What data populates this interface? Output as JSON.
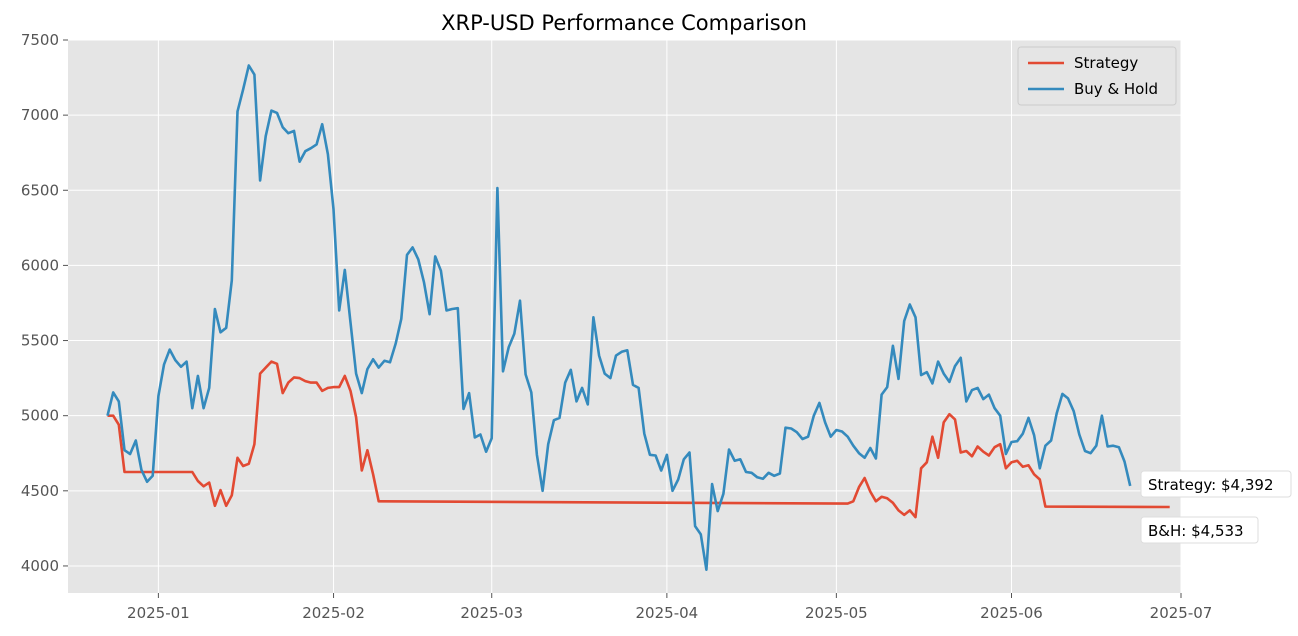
{
  "chart_data": {
    "type": "line",
    "title": "XRP-USD Performance Comparison",
    "xlabel": "",
    "ylabel": "",
    "x_range": [
      "2024-12-16",
      "2025-07-01"
    ],
    "ylim": [
      3820,
      7500
    ],
    "x_ticks": [
      {
        "date": "2025-01-01",
        "label": "2025-01"
      },
      {
        "date": "2025-02-01",
        "label": "2025-02"
      },
      {
        "date": "2025-03-01",
        "label": "2025-03"
      },
      {
        "date": "2025-04-01",
        "label": "2025-04"
      },
      {
        "date": "2025-05-01",
        "label": "2025-05"
      },
      {
        "date": "2025-06-01",
        "label": "2025-06"
      },
      {
        "date": "2025-07-01",
        "label": "2025-07"
      }
    ],
    "y_ticks": [
      4000,
      4500,
      5000,
      5500,
      6000,
      6500,
      7000,
      7500
    ],
    "grid": true,
    "legend_position": "top-right",
    "series": [
      {
        "name": "Strategy",
        "color": "#E24A33",
        "points": [
          [
            "2024-12-23",
            5000
          ],
          [
            "2024-12-24",
            5000
          ],
          [
            "2024-12-25",
            4940
          ],
          [
            "2024-12-26",
            4625
          ],
          [
            "2024-12-27",
            4625
          ],
          [
            "2025-01-07",
            4625
          ],
          [
            "2025-01-08",
            4565
          ],
          [
            "2025-01-09",
            4530
          ],
          [
            "2025-01-10",
            4555
          ],
          [
            "2025-01-11",
            4400
          ],
          [
            "2025-01-12",
            4505
          ],
          [
            "2025-01-13",
            4400
          ],
          [
            "2025-01-14",
            4470
          ],
          [
            "2025-01-15",
            4720
          ],
          [
            "2025-01-16",
            4665
          ],
          [
            "2025-01-17",
            4680
          ],
          [
            "2025-01-18",
            4810
          ],
          [
            "2025-01-19",
            5280
          ],
          [
            "2025-01-20",
            5320
          ],
          [
            "2025-01-21",
            5360
          ],
          [
            "2025-01-22",
            5345
          ],
          [
            "2025-01-23",
            5150
          ],
          [
            "2025-01-24",
            5220
          ],
          [
            "2025-01-25",
            5255
          ],
          [
            "2025-01-26",
            5250
          ],
          [
            "2025-01-27",
            5230
          ],
          [
            "2025-01-28",
            5220
          ],
          [
            "2025-01-29",
            5220
          ],
          [
            "2025-01-30",
            5165
          ],
          [
            "2025-01-31",
            5185
          ],
          [
            "2025-02-01",
            5190
          ],
          [
            "2025-02-02",
            5190
          ],
          [
            "2025-02-03",
            5265
          ],
          [
            "2025-02-04",
            5165
          ],
          [
            "2025-02-05",
            4990
          ],
          [
            "2025-02-06",
            4635
          ],
          [
            "2025-02-07",
            4770
          ],
          [
            "2025-02-08",
            4610
          ],
          [
            "2025-02-09",
            4430
          ],
          [
            "2025-05-03",
            4415
          ],
          [
            "2025-05-04",
            4430
          ],
          [
            "2025-05-05",
            4525
          ],
          [
            "2025-05-06",
            4585
          ],
          [
            "2025-05-07",
            4495
          ],
          [
            "2025-05-08",
            4430
          ],
          [
            "2025-05-09",
            4460
          ],
          [
            "2025-05-10",
            4450
          ],
          [
            "2025-05-11",
            4420
          ],
          [
            "2025-05-12",
            4370
          ],
          [
            "2025-05-13",
            4340
          ],
          [
            "2025-05-14",
            4370
          ],
          [
            "2025-05-15",
            4325
          ],
          [
            "2025-05-16",
            4650
          ],
          [
            "2025-05-17",
            4690
          ],
          [
            "2025-05-18",
            4860
          ],
          [
            "2025-05-19",
            4720
          ],
          [
            "2025-05-20",
            4955
          ],
          [
            "2025-05-21",
            5010
          ],
          [
            "2025-05-22",
            4975
          ],
          [
            "2025-05-23",
            4755
          ],
          [
            "2025-05-24",
            4765
          ],
          [
            "2025-05-25",
            4730
          ],
          [
            "2025-05-26",
            4795
          ],
          [
            "2025-05-27",
            4760
          ],
          [
            "2025-05-28",
            4735
          ],
          [
            "2025-05-29",
            4790
          ],
          [
            "2025-05-30",
            4810
          ],
          [
            "2025-05-31",
            4650
          ],
          [
            "2025-06-01",
            4690
          ],
          [
            "2025-06-02",
            4700
          ],
          [
            "2025-06-03",
            4660
          ],
          [
            "2025-06-04",
            4670
          ],
          [
            "2025-06-05",
            4610
          ],
          [
            "2025-06-06",
            4575
          ],
          [
            "2025-06-07",
            4395
          ],
          [
            "2025-06-29",
            4392
          ]
        ]
      },
      {
        "name": "Buy & Hold",
        "color": "#348ABD",
        "points": [
          [
            "2024-12-23",
            5000
          ],
          [
            "2024-12-24",
            5155
          ],
          [
            "2024-12-25",
            5095
          ],
          [
            "2024-12-26",
            4770
          ],
          [
            "2024-12-27",
            4745
          ],
          [
            "2024-12-28",
            4835
          ],
          [
            "2024-12-29",
            4640
          ],
          [
            "2024-12-30",
            4560
          ],
          [
            "2024-12-31",
            4600
          ],
          [
            "2025-01-01",
            5130
          ],
          [
            "2025-01-02",
            5340
          ],
          [
            "2025-01-03",
            5440
          ],
          [
            "2025-01-04",
            5370
          ],
          [
            "2025-01-05",
            5325
          ],
          [
            "2025-01-06",
            5360
          ],
          [
            "2025-01-07",
            5050
          ],
          [
            "2025-01-08",
            5265
          ],
          [
            "2025-01-09",
            5050
          ],
          [
            "2025-01-10",
            5185
          ],
          [
            "2025-01-11",
            5710
          ],
          [
            "2025-01-12",
            5555
          ],
          [
            "2025-01-13",
            5585
          ],
          [
            "2025-01-14",
            5900
          ],
          [
            "2025-01-15",
            7025
          ],
          [
            "2025-01-16",
            7170
          ],
          [
            "2025-01-17",
            7330
          ],
          [
            "2025-01-18",
            7270
          ],
          [
            "2025-01-19",
            6565
          ],
          [
            "2025-01-20",
            6860
          ],
          [
            "2025-01-21",
            7030
          ],
          [
            "2025-01-22",
            7015
          ],
          [
            "2025-01-23",
            6920
          ],
          [
            "2025-01-24",
            6880
          ],
          [
            "2025-01-25",
            6895
          ],
          [
            "2025-01-26",
            6690
          ],
          [
            "2025-01-27",
            6760
          ],
          [
            "2025-01-28",
            6780
          ],
          [
            "2025-01-29",
            6805
          ],
          [
            "2025-01-30",
            6940
          ],
          [
            "2025-01-31",
            6740
          ],
          [
            "2025-02-01",
            6375
          ],
          [
            "2025-02-02",
            5700
          ],
          [
            "2025-02-03",
            5970
          ],
          [
            "2025-02-04",
            5620
          ],
          [
            "2025-02-05",
            5280
          ],
          [
            "2025-02-06",
            5150
          ],
          [
            "2025-02-07",
            5310
          ],
          [
            "2025-02-08",
            5375
          ],
          [
            "2025-02-09",
            5320
          ],
          [
            "2025-02-10",
            5365
          ],
          [
            "2025-02-11",
            5355
          ],
          [
            "2025-02-12",
            5480
          ],
          [
            "2025-02-13",
            5645
          ],
          [
            "2025-02-14",
            6070
          ],
          [
            "2025-02-15",
            6120
          ],
          [
            "2025-02-16",
            6040
          ],
          [
            "2025-02-17",
            5890
          ],
          [
            "2025-02-18",
            5675
          ],
          [
            "2025-02-19",
            6060
          ],
          [
            "2025-02-20",
            5965
          ],
          [
            "2025-02-21",
            5700
          ],
          [
            "2025-02-22",
            5710
          ],
          [
            "2025-02-23",
            5715
          ],
          [
            "2025-02-24",
            5045
          ],
          [
            "2025-02-25",
            5150
          ],
          [
            "2025-02-26",
            4855
          ],
          [
            "2025-02-27",
            4875
          ],
          [
            "2025-02-28",
            4760
          ],
          [
            "2025-03-01",
            4850
          ],
          [
            "2025-03-02",
            6515
          ],
          [
            "2025-03-03",
            5295
          ],
          [
            "2025-03-04",
            5455
          ],
          [
            "2025-03-05",
            5545
          ],
          [
            "2025-03-06",
            5765
          ],
          [
            "2025-03-07",
            5275
          ],
          [
            "2025-03-08",
            5155
          ],
          [
            "2025-03-09",
            4740
          ],
          [
            "2025-03-10",
            4500
          ],
          [
            "2025-03-11",
            4810
          ],
          [
            "2025-03-12",
            4970
          ],
          [
            "2025-03-13",
            4985
          ],
          [
            "2025-03-14",
            5220
          ],
          [
            "2025-03-15",
            5305
          ],
          [
            "2025-03-16",
            5095
          ],
          [
            "2025-03-17",
            5185
          ],
          [
            "2025-03-18",
            5075
          ],
          [
            "2025-03-19",
            5655
          ],
          [
            "2025-03-20",
            5400
          ],
          [
            "2025-03-21",
            5280
          ],
          [
            "2025-03-22",
            5250
          ],
          [
            "2025-03-23",
            5400
          ],
          [
            "2025-03-24",
            5425
          ],
          [
            "2025-03-25",
            5435
          ],
          [
            "2025-03-26",
            5205
          ],
          [
            "2025-03-27",
            5185
          ],
          [
            "2025-03-28",
            4880
          ],
          [
            "2025-03-29",
            4740
          ],
          [
            "2025-03-30",
            4735
          ],
          [
            "2025-03-31",
            4635
          ],
          [
            "2025-04-01",
            4740
          ],
          [
            "2025-04-02",
            4500
          ],
          [
            "2025-04-03",
            4575
          ],
          [
            "2025-04-04",
            4710
          ],
          [
            "2025-04-05",
            4755
          ],
          [
            "2025-04-06",
            4265
          ],
          [
            "2025-04-07",
            4210
          ],
          [
            "2025-04-08",
            3975
          ],
          [
            "2025-04-09",
            4545
          ],
          [
            "2025-04-10",
            4365
          ],
          [
            "2025-04-11",
            4480
          ],
          [
            "2025-04-12",
            4775
          ],
          [
            "2025-04-13",
            4700
          ],
          [
            "2025-04-14",
            4710
          ],
          [
            "2025-04-15",
            4625
          ],
          [
            "2025-04-16",
            4620
          ],
          [
            "2025-04-17",
            4590
          ],
          [
            "2025-04-18",
            4580
          ],
          [
            "2025-04-19",
            4620
          ],
          [
            "2025-04-20",
            4600
          ],
          [
            "2025-04-21",
            4615
          ],
          [
            "2025-04-22",
            4920
          ],
          [
            "2025-04-23",
            4915
          ],
          [
            "2025-04-24",
            4890
          ],
          [
            "2025-04-25",
            4845
          ],
          [
            "2025-04-26",
            4860
          ],
          [
            "2025-04-27",
            5000
          ],
          [
            "2025-04-28",
            5085
          ],
          [
            "2025-04-29",
            4955
          ],
          [
            "2025-04-30",
            4860
          ],
          [
            "2025-05-01",
            4905
          ],
          [
            "2025-05-02",
            4895
          ],
          [
            "2025-05-03",
            4860
          ],
          [
            "2025-05-04",
            4800
          ],
          [
            "2025-05-05",
            4750
          ],
          [
            "2025-05-06",
            4720
          ],
          [
            "2025-05-07",
            4785
          ],
          [
            "2025-05-08",
            4715
          ],
          [
            "2025-05-09",
            5140
          ],
          [
            "2025-05-10",
            5190
          ],
          [
            "2025-05-11",
            5465
          ],
          [
            "2025-05-12",
            5245
          ],
          [
            "2025-05-13",
            5630
          ],
          [
            "2025-05-14",
            5740
          ],
          [
            "2025-05-15",
            5655
          ],
          [
            "2025-05-16",
            5270
          ],
          [
            "2025-05-17",
            5290
          ],
          [
            "2025-05-18",
            5215
          ],
          [
            "2025-05-19",
            5360
          ],
          [
            "2025-05-20",
            5280
          ],
          [
            "2025-05-21",
            5225
          ],
          [
            "2025-05-22",
            5330
          ],
          [
            "2025-05-23",
            5385
          ],
          [
            "2025-05-24",
            5095
          ],
          [
            "2025-05-25",
            5170
          ],
          [
            "2025-05-26",
            5185
          ],
          [
            "2025-05-27",
            5110
          ],
          [
            "2025-05-28",
            5140
          ],
          [
            "2025-05-29",
            5050
          ],
          [
            "2025-05-30",
            5000
          ],
          [
            "2025-05-31",
            4745
          ],
          [
            "2025-06-01",
            4825
          ],
          [
            "2025-06-02",
            4830
          ],
          [
            "2025-06-03",
            4880
          ],
          [
            "2025-06-04",
            4985
          ],
          [
            "2025-06-05",
            4870
          ],
          [
            "2025-06-06",
            4650
          ],
          [
            "2025-06-07",
            4800
          ],
          [
            "2025-06-08",
            4835
          ],
          [
            "2025-06-09",
            5015
          ],
          [
            "2025-06-10",
            5145
          ],
          [
            "2025-06-11",
            5115
          ],
          [
            "2025-06-12",
            5030
          ],
          [
            "2025-06-13",
            4875
          ],
          [
            "2025-06-14",
            4765
          ],
          [
            "2025-06-15",
            4750
          ],
          [
            "2025-06-16",
            4800
          ],
          [
            "2025-06-17",
            5000
          ],
          [
            "2025-06-18",
            4795
          ],
          [
            "2025-06-19",
            4800
          ],
          [
            "2025-06-20",
            4790
          ],
          [
            "2025-06-21",
            4695
          ],
          [
            "2025-06-22",
            4533
          ]
        ]
      }
    ],
    "annotations": [
      {
        "text": "Strategy: $4,392",
        "series": "Strategy",
        "date": "2025-06-29",
        "value": 4392
      },
      {
        "text": "B&H: $4,533",
        "series": "Buy & Hold",
        "date": "2025-06-22",
        "value": 4533
      }
    ]
  }
}
